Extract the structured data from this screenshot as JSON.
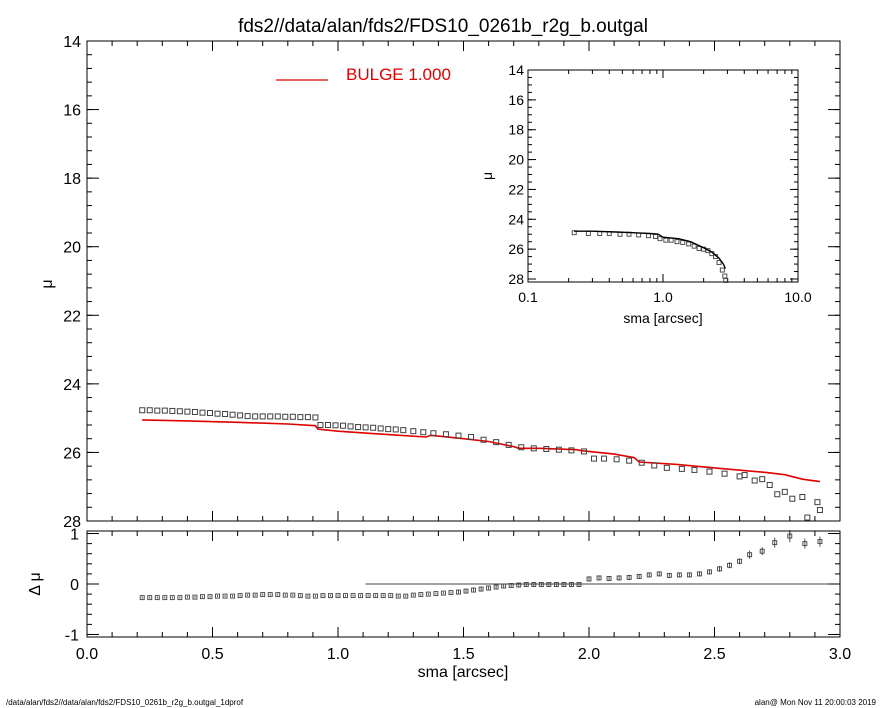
{
  "title": "fds2//data/alan/fds2/FDS10_0261b_r2g_b.outgal",
  "footer": {
    "left": "/data/alan/fds2//data/alan/fds2/FDS10_0261b_r2g_b.outgal_1dprof",
    "right": "alan@  Mon Nov 11 20:00:03 2019"
  },
  "legend": {
    "label": "BULGE  1.000",
    "color": "#e00000"
  },
  "chart_data": [
    {
      "id": "main",
      "type": "scatter",
      "xlabel": "sma [arcsec]",
      "ylabel": "μ",
      "xlim": [
        0,
        3.0
      ],
      "ylim": [
        28,
        14
      ],
      "y_inverted": true,
      "xticks": [
        "0.0",
        "0.5",
        "1.0",
        "1.5",
        "2.0",
        "2.5",
        "3.0"
      ],
      "yticks": [
        "14",
        "16",
        "18",
        "20",
        "22",
        "24",
        "26",
        "28"
      ],
      "series": [
        {
          "role": "data",
          "marker": "square",
          "color": "#404040",
          "x": [
            0.22,
            0.25,
            0.28,
            0.31,
            0.34,
            0.37,
            0.4,
            0.43,
            0.46,
            0.49,
            0.52,
            0.55,
            0.58,
            0.61,
            0.64,
            0.67,
            0.7,
            0.73,
            0.76,
            0.79,
            0.82,
            0.85,
            0.88,
            0.91,
            0.93,
            0.96,
            0.99,
            1.02,
            1.05,
            1.08,
            1.11,
            1.14,
            1.17,
            1.2,
            1.23,
            1.26,
            1.3,
            1.34,
            1.38,
            1.43,
            1.48,
            1.53,
            1.58,
            1.63,
            1.68,
            1.73,
            1.78,
            1.83,
            1.88,
            1.93,
            1.98,
            2.02,
            2.06,
            2.11,
            2.16,
            2.21,
            2.26,
            2.31,
            2.37,
            2.42,
            2.48,
            2.54,
            2.6,
            2.66,
            2.72,
            2.78,
            2.85,
            2.91
          ],
          "y": [
            24.77,
            24.77,
            24.78,
            24.78,
            24.79,
            24.8,
            24.81,
            24.82,
            24.84,
            24.85,
            24.87,
            24.88,
            24.9,
            24.92,
            24.94,
            24.95,
            24.95,
            24.95,
            24.95,
            24.96,
            24.96,
            24.97,
            24.97,
            24.98,
            25.2,
            25.2,
            25.21,
            25.22,
            25.24,
            25.26,
            25.27,
            25.28,
            25.3,
            25.32,
            25.33,
            25.35,
            25.38,
            25.41,
            25.44,
            25.47,
            25.51,
            25.55,
            25.63,
            25.7,
            25.78,
            25.85,
            25.88,
            25.9,
            25.92,
            25.94,
            25.97,
            26.18,
            26.18,
            26.2,
            26.24,
            26.3,
            26.38,
            26.45,
            26.48,
            26.51,
            26.56,
            26.62,
            26.7,
            26.82,
            26.95,
            27.15,
            27.3,
            27.45
          ]
        },
        {
          "role": "data",
          "marker": "square",
          "color": "#404040",
          "x": [
            2.62,
            2.69,
            2.75,
            2.81,
            2.87,
            2.92
          ],
          "y": [
            26.66,
            26.78,
            27.22,
            27.35,
            27.9,
            27.68
          ]
        },
        {
          "role": "model",
          "name": "BULGE  1.000",
          "color": "#e00000",
          "x": [
            0.22,
            0.4,
            0.6,
            0.8,
            0.91,
            0.92,
            1.0,
            1.2,
            1.35,
            1.37,
            1.5,
            1.6,
            1.7,
            1.72,
            1.8,
            1.95,
            1.97,
            2.1,
            2.18,
            2.2,
            2.35,
            2.5,
            2.7,
            2.78,
            2.85,
            2.92
          ],
          "y": [
            25.05,
            25.08,
            25.12,
            25.17,
            25.22,
            25.32,
            25.38,
            25.48,
            25.55,
            25.5,
            25.6,
            25.68,
            25.83,
            25.88,
            25.88,
            25.92,
            25.95,
            26.05,
            26.15,
            26.28,
            26.35,
            26.45,
            26.58,
            26.65,
            26.78,
            26.85
          ]
        }
      ]
    },
    {
      "id": "inset",
      "type": "line",
      "xlabel": "sma [arcsec]",
      "ylabel": "μ",
      "xscale": "log",
      "xlim": [
        0.1,
        10.0
      ],
      "ylim": [
        28.2,
        14
      ],
      "y_inverted": true,
      "xticks": [
        "0.1",
        "1.0",
        "10.0"
      ],
      "yticks": [
        "14",
        "16",
        "18",
        "20",
        "22",
        "24",
        "26",
        "28"
      ],
      "series": [
        {
          "role": "model",
          "color": "#000000",
          "x": [
            0.22,
            0.3,
            0.45,
            0.6,
            0.8,
            0.92,
            1.0,
            1.3,
            1.6,
            2.0,
            2.3,
            2.6,
            2.8,
            2.9
          ],
          "y": [
            24.8,
            24.8,
            24.85,
            24.9,
            24.95,
            25.0,
            25.2,
            25.3,
            25.5,
            25.9,
            26.2,
            26.6,
            27.0,
            27.3
          ]
        },
        {
          "role": "data",
          "marker": "square",
          "color": "#404040",
          "x": [
            0.22,
            0.28,
            0.34,
            0.4,
            0.48,
            0.56,
            0.66,
            0.78,
            0.88,
            0.95,
            1.05,
            1.15,
            1.27,
            1.4,
            1.55,
            1.7,
            1.85,
            2.0,
            2.15,
            2.3,
            2.45,
            2.6,
            2.75,
            2.87,
            2.92
          ],
          "y": [
            24.9,
            24.95,
            24.95,
            24.95,
            25.0,
            25.0,
            25.05,
            25.1,
            25.15,
            25.3,
            25.4,
            25.4,
            25.5,
            25.55,
            25.65,
            25.8,
            25.95,
            26.0,
            26.1,
            26.3,
            26.5,
            26.9,
            27.4,
            27.8,
            28.1
          ]
        }
      ]
    },
    {
      "id": "residual",
      "type": "scatter",
      "xlabel": "sma [arcsec]",
      "ylabel": "Δ μ",
      "xlim": [
        0,
        3.0
      ],
      "ylim": [
        -1.05,
        1.05
      ],
      "yticks": [
        "-1",
        "0",
        "1"
      ],
      "zero_line_from_x": 1.11,
      "series": [
        {
          "role": "residual",
          "marker": "square",
          "errorbars": true,
          "color": "#404040",
          "x": [
            0.22,
            0.25,
            0.28,
            0.31,
            0.34,
            0.37,
            0.4,
            0.43,
            0.46,
            0.49,
            0.52,
            0.55,
            0.58,
            0.61,
            0.64,
            0.67,
            0.7,
            0.73,
            0.76,
            0.79,
            0.82,
            0.85,
            0.88,
            0.91,
            0.94,
            0.97,
            1.0,
            1.03,
            1.06,
            1.09,
            1.12,
            1.15,
            1.18,
            1.21,
            1.24,
            1.27,
            1.3,
            1.33,
            1.36,
            1.39,
            1.42,
            1.45,
            1.48,
            1.51,
            1.54,
            1.57,
            1.6,
            1.63,
            1.66,
            1.69,
            1.72,
            1.75,
            1.78,
            1.81,
            1.84,
            1.87,
            1.9,
            1.93,
            1.96,
            2.0,
            2.04,
            2.08,
            2.12,
            2.16,
            2.2,
            2.24,
            2.28,
            2.32,
            2.36,
            2.4,
            2.44,
            2.48,
            2.52,
            2.56,
            2.6,
            2.64,
            2.69,
            2.74,
            2.8,
            2.86,
            2.92
          ],
          "y": [
            -0.27,
            -0.27,
            -0.27,
            -0.27,
            -0.27,
            -0.27,
            -0.26,
            -0.26,
            -0.25,
            -0.25,
            -0.24,
            -0.24,
            -0.24,
            -0.23,
            -0.22,
            -0.22,
            -0.21,
            -0.21,
            -0.21,
            -0.22,
            -0.22,
            -0.23,
            -0.24,
            -0.24,
            -0.23,
            -0.23,
            -0.23,
            -0.23,
            -0.23,
            -0.23,
            -0.23,
            -0.23,
            -0.23,
            -0.23,
            -0.24,
            -0.24,
            -0.22,
            -0.21,
            -0.2,
            -0.19,
            -0.18,
            -0.17,
            -0.16,
            -0.14,
            -0.12,
            -0.1,
            -0.08,
            -0.06,
            -0.04,
            -0.03,
            -0.02,
            -0.01,
            -0.01,
            -0.01,
            -0.01,
            -0.01,
            -0.01,
            -0.01,
            -0.01,
            0.1,
            0.12,
            0.11,
            0.12,
            0.13,
            0.15,
            0.18,
            0.2,
            0.17,
            0.18,
            0.18,
            0.2,
            0.24,
            0.3,
            0.37,
            0.45,
            0.58,
            0.65,
            0.82,
            0.95,
            0.8,
            0.84
          ],
          "err": [
            0.02,
            0.02,
            0.02,
            0.02,
            0.02,
            0.02,
            0.02,
            0.02,
            0.02,
            0.02,
            0.02,
            0.02,
            0.02,
            0.02,
            0.02,
            0.02,
            0.02,
            0.02,
            0.02,
            0.02,
            0.02,
            0.02,
            0.02,
            0.02,
            0.02,
            0.02,
            0.02,
            0.02,
            0.02,
            0.02,
            0.02,
            0.02,
            0.02,
            0.02,
            0.02,
            0.02,
            0.02,
            0.02,
            0.02,
            0.02,
            0.02,
            0.02,
            0.03,
            0.03,
            0.03,
            0.03,
            0.03,
            0.03,
            0.03,
            0.03,
            0.03,
            0.03,
            0.03,
            0.03,
            0.03,
            0.03,
            0.03,
            0.03,
            0.03,
            0.05,
            0.05,
            0.05,
            0.05,
            0.05,
            0.05,
            0.05,
            0.05,
            0.05,
            0.05,
            0.05,
            0.05,
            0.05,
            0.06,
            0.06,
            0.06,
            0.08,
            0.08,
            0.1,
            0.12,
            0.1,
            0.1
          ]
        }
      ]
    }
  ]
}
